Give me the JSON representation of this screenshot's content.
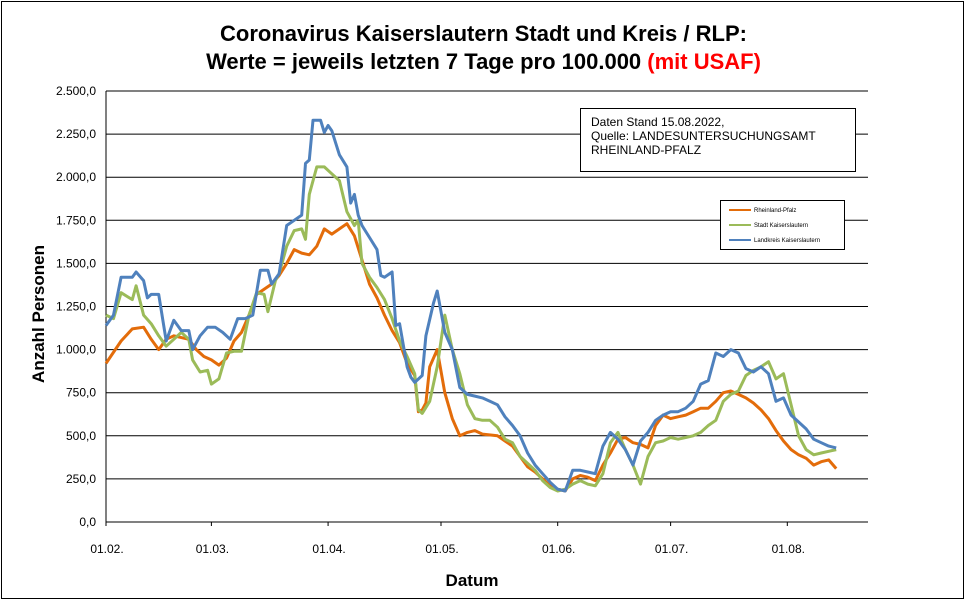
{
  "title_line1": "Coronavirus Kaiserslautern Stadt und Kreis / RLP:",
  "title_line2_main": "Werte = jeweils letzten 7 Tage pro 100.000 ",
  "title_line2_red": "(mit USAF)",
  "info_line1": "Daten Stand 15.08.2022,",
  "info_line2": "Quelle: LANDESUNTERSUCHUNGSAMT",
  "info_line3": "RHEINLAND-PFALZ",
  "colors": {
    "rlp": "#e36c0a",
    "stadt": "#9bbb59",
    "kreis": "#4f81bd"
  },
  "chart_data": {
    "type": "line",
    "xlabel": "Datum",
    "ylabel": "Anzahl Personen",
    "ylim": [
      0,
      2500
    ],
    "yticks": [
      "0,0",
      "250,0",
      "500,0",
      "750,0",
      "1.000,0",
      "1.250,0",
      "1.500,0",
      "1.750,0",
      "2.000,0",
      "2.250,0",
      "2.500,0"
    ],
    "xticks": [
      {
        "label": "01.02.",
        "day": 0
      },
      {
        "label": "01.03.",
        "day": 28
      },
      {
        "label": "01.04.",
        "day": 59
      },
      {
        "label": "01.05.",
        "day": 89
      },
      {
        "label": "01.06.",
        "day": 120
      },
      {
        "label": "01.07.",
        "day": 150
      },
      {
        "label": "01.08.",
        "day": 181
      }
    ],
    "x_range_days": [
      0,
      195
    ],
    "grid": true,
    "legend_position": "right",
    "series": [
      {
        "name": "Rheinland-Pfalz",
        "color_key": "rlp",
        "points": [
          [
            0,
            920
          ],
          [
            4,
            1050
          ],
          [
            7,
            1120
          ],
          [
            10,
            1130
          ],
          [
            12,
            1060
          ],
          [
            14,
            1000
          ],
          [
            16,
            1060
          ],
          [
            18,
            1080
          ],
          [
            22,
            1060
          ],
          [
            24,
            1000
          ],
          [
            26,
            960
          ],
          [
            28,
            940
          ],
          [
            30,
            910
          ],
          [
            32,
            950
          ],
          [
            34,
            1050
          ],
          [
            36,
            1100
          ],
          [
            38,
            1200
          ],
          [
            40,
            1320
          ],
          [
            42,
            1350
          ],
          [
            44,
            1380
          ],
          [
            46,
            1430
          ],
          [
            48,
            1500
          ],
          [
            50,
            1580
          ],
          [
            52,
            1560
          ],
          [
            54,
            1550
          ],
          [
            56,
            1600
          ],
          [
            58,
            1700
          ],
          [
            60,
            1670
          ],
          [
            62,
            1700
          ],
          [
            64,
            1730
          ],
          [
            66,
            1660
          ],
          [
            68,
            1520
          ],
          [
            70,
            1380
          ],
          [
            72,
            1300
          ],
          [
            74,
            1200
          ],
          [
            76,
            1110
          ],
          [
            78,
            1040
          ],
          [
            80,
            920
          ],
          [
            82,
            850
          ],
          [
            83,
            640
          ],
          [
            84,
            650
          ],
          [
            85,
            690
          ],
          [
            86,
            900
          ],
          [
            88,
            1000
          ],
          [
            90,
            750
          ],
          [
            92,
            600
          ],
          [
            94,
            500
          ],
          [
            96,
            520
          ],
          [
            98,
            530
          ],
          [
            100,
            510
          ],
          [
            104,
            500
          ],
          [
            106,
            470
          ],
          [
            108,
            440
          ],
          [
            110,
            380
          ],
          [
            112,
            320
          ],
          [
            114,
            290
          ],
          [
            116,
            250
          ],
          [
            118,
            210
          ],
          [
            120,
            190
          ],
          [
            122,
            180
          ],
          [
            124,
            250
          ],
          [
            126,
            270
          ],
          [
            128,
            260
          ],
          [
            130,
            240
          ],
          [
            132,
            330
          ],
          [
            134,
            400
          ],
          [
            136,
            480
          ],
          [
            138,
            490
          ],
          [
            140,
            460
          ],
          [
            142,
            450
          ],
          [
            144,
            430
          ],
          [
            146,
            560
          ],
          [
            148,
            620
          ],
          [
            150,
            600
          ],
          [
            152,
            610
          ],
          [
            154,
            620
          ],
          [
            156,
            640
          ],
          [
            158,
            660
          ],
          [
            160,
            660
          ],
          [
            162,
            700
          ],
          [
            164,
            750
          ],
          [
            166,
            760
          ],
          [
            168,
            740
          ],
          [
            170,
            720
          ],
          [
            172,
            690
          ],
          [
            174,
            650
          ],
          [
            176,
            600
          ],
          [
            178,
            530
          ],
          [
            180,
            470
          ],
          [
            182,
            420
          ],
          [
            184,
            390
          ],
          [
            186,
            370
          ],
          [
            188,
            330
          ],
          [
            190,
            350
          ],
          [
            192,
            360
          ],
          [
            194,
            310
          ]
        ]
      },
      {
        "name": "Stadt Kaiserslautern",
        "color_key": "stadt",
        "points": [
          [
            0,
            1200
          ],
          [
            2,
            1180
          ],
          [
            4,
            1330
          ],
          [
            7,
            1290
          ],
          [
            8,
            1370
          ],
          [
            10,
            1200
          ],
          [
            12,
            1150
          ],
          [
            14,
            1080
          ],
          [
            16,
            1020
          ],
          [
            18,
            1060
          ],
          [
            20,
            1100
          ],
          [
            22,
            1060
          ],
          [
            23,
            940
          ],
          [
            25,
            870
          ],
          [
            27,
            880
          ],
          [
            28,
            800
          ],
          [
            30,
            830
          ],
          [
            32,
            980
          ],
          [
            34,
            990
          ],
          [
            36,
            990
          ],
          [
            38,
            1200
          ],
          [
            40,
            1330
          ],
          [
            42,
            1320
          ],
          [
            43,
            1220
          ],
          [
            45,
            1400
          ],
          [
            46,
            1440
          ],
          [
            48,
            1600
          ],
          [
            50,
            1690
          ],
          [
            52,
            1700
          ],
          [
            53,
            1640
          ],
          [
            54,
            1900
          ],
          [
            56,
            2060
          ],
          [
            58,
            2060
          ],
          [
            60,
            2020
          ],
          [
            62,
            1980
          ],
          [
            64,
            1800
          ],
          [
            66,
            1720
          ],
          [
            67,
            1750
          ],
          [
            68,
            1500
          ],
          [
            70,
            1420
          ],
          [
            72,
            1360
          ],
          [
            74,
            1290
          ],
          [
            76,
            1180
          ],
          [
            78,
            1050
          ],
          [
            80,
            960
          ],
          [
            82,
            860
          ],
          [
            83,
            650
          ],
          [
            84,
            630
          ],
          [
            86,
            700
          ],
          [
            88,
            900
          ],
          [
            89,
            1050
          ],
          [
            90,
            1200
          ],
          [
            92,
            1000
          ],
          [
            94,
            860
          ],
          [
            96,
            680
          ],
          [
            98,
            600
          ],
          [
            100,
            590
          ],
          [
            102,
            590
          ],
          [
            104,
            550
          ],
          [
            106,
            480
          ],
          [
            108,
            460
          ],
          [
            110,
            380
          ],
          [
            112,
            340
          ],
          [
            114,
            300
          ],
          [
            116,
            240
          ],
          [
            118,
            200
          ],
          [
            120,
            180
          ],
          [
            122,
            190
          ],
          [
            124,
            220
          ],
          [
            126,
            240
          ],
          [
            128,
            220
          ],
          [
            130,
            210
          ],
          [
            132,
            280
          ],
          [
            134,
            460
          ],
          [
            136,
            520
          ],
          [
            138,
            420
          ],
          [
            140,
            330
          ],
          [
            142,
            220
          ],
          [
            144,
            380
          ],
          [
            146,
            460
          ],
          [
            148,
            470
          ],
          [
            150,
            490
          ],
          [
            152,
            480
          ],
          [
            154,
            490
          ],
          [
            156,
            500
          ],
          [
            158,
            520
          ],
          [
            160,
            560
          ],
          [
            162,
            590
          ],
          [
            164,
            700
          ],
          [
            166,
            740
          ],
          [
            168,
            760
          ],
          [
            170,
            850
          ],
          [
            172,
            880
          ],
          [
            174,
            900
          ],
          [
            176,
            930
          ],
          [
            178,
            830
          ],
          [
            180,
            860
          ],
          [
            182,
            680
          ],
          [
            184,
            500
          ],
          [
            186,
            420
          ],
          [
            188,
            390
          ],
          [
            190,
            400
          ],
          [
            192,
            410
          ],
          [
            194,
            420
          ]
        ]
      },
      {
        "name": "Landkreis Kaiserslautern",
        "color_key": "kreis",
        "points": [
          [
            0,
            1140
          ],
          [
            2,
            1200
          ],
          [
            4,
            1420
          ],
          [
            7,
            1420
          ],
          [
            8,
            1450
          ],
          [
            10,
            1400
          ],
          [
            11,
            1300
          ],
          [
            12,
            1320
          ],
          [
            14,
            1320
          ],
          [
            16,
            1050
          ],
          [
            18,
            1170
          ],
          [
            20,
            1110
          ],
          [
            22,
            1110
          ],
          [
            23,
            1000
          ],
          [
            25,
            1080
          ],
          [
            27,
            1130
          ],
          [
            29,
            1130
          ],
          [
            31,
            1100
          ],
          [
            33,
            1060
          ],
          [
            35,
            1180
          ],
          [
            37,
            1180
          ],
          [
            39,
            1200
          ],
          [
            41,
            1460
          ],
          [
            43,
            1460
          ],
          [
            44,
            1380
          ],
          [
            46,
            1440
          ],
          [
            48,
            1720
          ],
          [
            50,
            1750
          ],
          [
            52,
            1780
          ],
          [
            53,
            2080
          ],
          [
            54,
            2100
          ],
          [
            55,
            2330
          ],
          [
            57,
            2330
          ],
          [
            58,
            2260
          ],
          [
            59,
            2300
          ],
          [
            60,
            2270
          ],
          [
            62,
            2130
          ],
          [
            64,
            2060
          ],
          [
            65,
            1850
          ],
          [
            66,
            1900
          ],
          [
            67,
            1780
          ],
          [
            68,
            1720
          ],
          [
            70,
            1650
          ],
          [
            72,
            1580
          ],
          [
            73,
            1430
          ],
          [
            74,
            1420
          ],
          [
            76,
            1450
          ],
          [
            77,
            1140
          ],
          [
            78,
            1150
          ],
          [
            80,
            900
          ],
          [
            81,
            840
          ],
          [
            82,
            810
          ],
          [
            84,
            850
          ],
          [
            85,
            1080
          ],
          [
            87,
            1270
          ],
          [
            88,
            1340
          ],
          [
            90,
            1100
          ],
          [
            92,
            1000
          ],
          [
            94,
            780
          ],
          [
            96,
            740
          ],
          [
            98,
            730
          ],
          [
            100,
            720
          ],
          [
            102,
            700
          ],
          [
            104,
            680
          ],
          [
            106,
            610
          ],
          [
            108,
            560
          ],
          [
            110,
            500
          ],
          [
            112,
            400
          ],
          [
            114,
            330
          ],
          [
            116,
            280
          ],
          [
            118,
            230
          ],
          [
            120,
            190
          ],
          [
            122,
            180
          ],
          [
            124,
            300
          ],
          [
            126,
            300
          ],
          [
            128,
            290
          ],
          [
            130,
            280
          ],
          [
            132,
            440
          ],
          [
            134,
            520
          ],
          [
            136,
            480
          ],
          [
            138,
            420
          ],
          [
            140,
            330
          ],
          [
            142,
            470
          ],
          [
            144,
            520
          ],
          [
            146,
            590
          ],
          [
            148,
            620
          ],
          [
            150,
            640
          ],
          [
            152,
            640
          ],
          [
            154,
            660
          ],
          [
            156,
            700
          ],
          [
            158,
            800
          ],
          [
            160,
            820
          ],
          [
            162,
            980
          ],
          [
            164,
            960
          ],
          [
            166,
            1000
          ],
          [
            168,
            980
          ],
          [
            170,
            890
          ],
          [
            172,
            870
          ],
          [
            174,
            900
          ],
          [
            176,
            860
          ],
          [
            178,
            700
          ],
          [
            180,
            720
          ],
          [
            182,
            620
          ],
          [
            184,
            580
          ],
          [
            186,
            540
          ],
          [
            188,
            480
          ],
          [
            190,
            460
          ],
          [
            192,
            440
          ],
          [
            194,
            430
          ]
        ]
      }
    ]
  }
}
